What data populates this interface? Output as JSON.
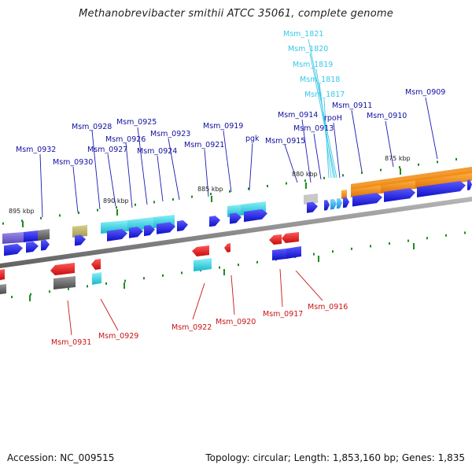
{
  "title": "Methanobrevibacter smithii ATCC 35061, complete genome",
  "footer": {
    "accession": "Accession: NC_009515",
    "topology": "Topology: circular; Length: 1,853,160 bp; Genes: 1,835"
  },
  "scale_labels": [
    "895 kbp",
    "890 kbp",
    "885 kbp",
    "880 kbp",
    "875 kbp"
  ],
  "gene_labels": {
    "forward": [
      "Msm_0932",
      "Msm_0930",
      "Msm_0928",
      "Msm_0927",
      "Msm_0926",
      "Msm_0925",
      "Msm_0924",
      "Msm_0923",
      "Msm_0921",
      "Msm_0919",
      "pgk",
      "Msm_0915",
      "Msm_0914",
      "Msm_0913",
      "rpoH",
      "Msm_0911",
      "Msm_0910",
      "Msm_0909"
    ],
    "cluster": [
      "Msm_1821",
      "Msm_1820",
      "Msm_1819",
      "Msm_1818",
      "Msm_1817"
    ],
    "reverse": [
      "Msm_0931",
      "Msm_0929",
      "Msm_0922",
      "Msm_0920",
      "Msm_0917",
      "Msm_0916"
    ]
  },
  "colors": {
    "forward_label": "#1010a0",
    "reverse_label": "#c81414",
    "cluster_label": "#38c8e8",
    "forward_gene": "#1a1ae6",
    "reverse_gene": "#e61a1a",
    "cyan_track": "#28d8e6",
    "orange_track": "#f08a10",
    "backbone": "#8c8c8c",
    "tick": "#1e8c1e"
  }
}
